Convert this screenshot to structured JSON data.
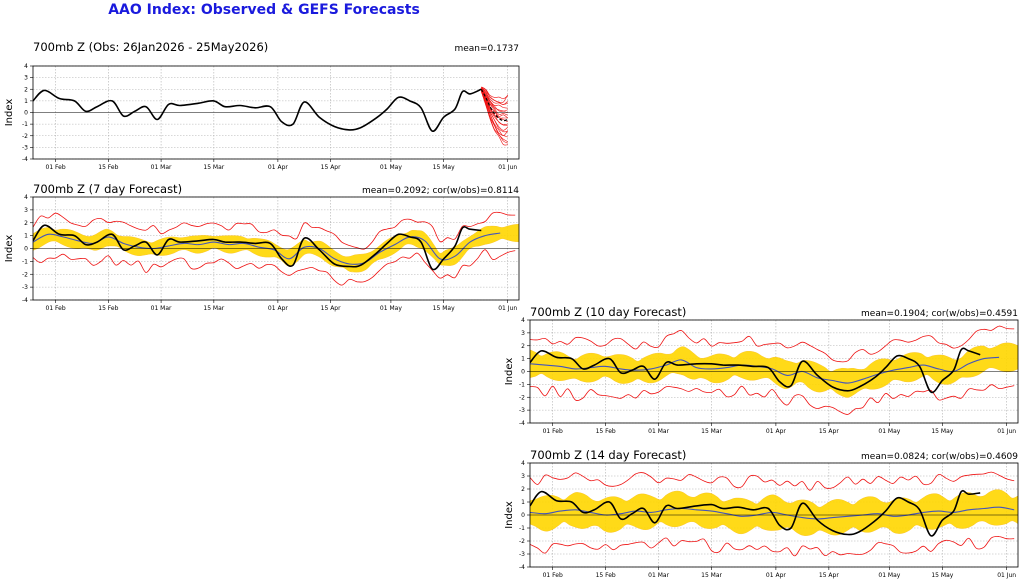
{
  "title": "AAO Index: Observed & GEFS Forecasts",
  "colors": {
    "observed": "#000000",
    "ensemble": "#ee1111",
    "spread": "#ffd700",
    "spread_edge": "#f7b500",
    "mean": "#4455bb",
    "title": "#1a1add"
  },
  "chart_data": [
    {
      "id": "obs",
      "type": "line",
      "title": "700mb Z (Obs: 26Jan2026 - 25May2026)",
      "stat": "mean=0.1737",
      "ylabel": "Index",
      "ylim": [
        -4,
        4
      ],
      "yticks": [
        -4,
        -3,
        -2,
        -1,
        0,
        1,
        2,
        3,
        4
      ],
      "xlim": [
        0,
        129
      ],
      "x_ticks": [
        {
          "x": 6,
          "label": "01 Feb"
        },
        {
          "x": 20,
          "label": "15 Feb"
        },
        {
          "x": 34,
          "label": "01 Mar"
        },
        {
          "x": 48,
          "label": "15 Mar"
        },
        {
          "x": 65,
          "label": "01 Apr"
        },
        {
          "x": 79,
          "label": "15 Apr"
        },
        {
          "x": 95,
          "label": "01 May"
        },
        {
          "x": 109,
          "label": "15 May"
        },
        {
          "x": 126,
          "label": "01 Jun"
        }
      ],
      "observed": {
        "x": [
          0,
          3,
          7,
          11,
          14,
          17,
          21,
          24,
          27,
          30,
          33,
          36,
          39,
          44,
          48,
          51,
          55,
          59,
          63,
          66,
          69,
          72,
          76,
          80,
          84,
          87,
          91,
          94,
          97,
          100,
          103,
          106,
          109,
          112,
          114,
          116,
          119
        ],
        "y": [
          1.0,
          1.9,
          1.2,
          1.0,
          0.1,
          0.5,
          1.0,
          -0.3,
          0.1,
          0.5,
          -0.6,
          0.7,
          0.6,
          0.8,
          1.0,
          0.5,
          0.6,
          0.4,
          0.5,
          -0.8,
          -1.0,
          0.9,
          -0.4,
          -1.2,
          -1.5,
          -1.3,
          -0.5,
          0.3,
          1.3,
          1.0,
          0.4,
          -1.6,
          -0.4,
          0.3,
          1.8,
          1.6,
          2.0
        ]
      },
      "forecast": {
        "start_x": 119,
        "end_x": 126,
        "start_y": 2.0,
        "mean": [
          2.0,
          1.3,
          0.5,
          -0.1,
          -0.5,
          -0.7,
          -0.6
        ],
        "spread": [
          0.2,
          0.7,
          1.0,
          1.4,
          1.7,
          1.9,
          2.1
        ],
        "members": 20
      }
    },
    {
      "id": "d7",
      "type": "line",
      "title": "700mb Z (7 day Forecast)",
      "stat": "mean=0.2092; cor(w/obs)=0.8114",
      "ylabel": "Index",
      "ylim": [
        -4,
        4
      ],
      "yticks": [
        -4,
        -3,
        -2,
        -1,
        0,
        1,
        2,
        3,
        4
      ],
      "xlim": [
        0,
        129
      ],
      "x_ticks": [
        {
          "x": 6,
          "label": "01 Feb"
        },
        {
          "x": 20,
          "label": "15 Feb"
        },
        {
          "x": 34,
          "label": "01 Mar"
        },
        {
          "x": 48,
          "label": "15 Mar"
        },
        {
          "x": 65,
          "label": "01 Apr"
        },
        {
          "x": 79,
          "label": "15 Apr"
        },
        {
          "x": 95,
          "label": "01 May"
        },
        {
          "x": 109,
          "label": "15 May"
        },
        {
          "x": 126,
          "label": "01 Jun"
        }
      ],
      "observed": {
        "x": [
          0,
          3,
          7,
          11,
          14,
          17,
          21,
          24,
          27,
          30,
          33,
          36,
          39,
          44,
          48,
          51,
          55,
          59,
          63,
          66,
          69,
          72,
          76,
          80,
          84,
          87,
          91,
          94,
          97,
          100,
          103,
          106,
          109,
          112,
          114,
          116,
          119
        ],
        "y": [
          0.6,
          1.8,
          1.1,
          1.0,
          0.3,
          0.5,
          1.1,
          -0.1,
          0.2,
          0.5,
          -0.5,
          0.7,
          0.5,
          0.6,
          0.7,
          0.5,
          0.5,
          0.4,
          0.4,
          -0.8,
          -1.3,
          0.8,
          -0.1,
          -1.2,
          -1.4,
          -1.3,
          -0.4,
          0.4,
          1.1,
          0.9,
          0.5,
          -1.6,
          -0.8,
          0.2,
          1.6,
          1.5,
          1.4
        ]
      },
      "mean": {
        "x": [
          0,
          4,
          8,
          12,
          16,
          20,
          24,
          28,
          32,
          36,
          40,
          44,
          48,
          52,
          56,
          60,
          64,
          68,
          72,
          76,
          80,
          84,
          88,
          92,
          96,
          100,
          104,
          108,
          112,
          116,
          120,
          124
        ],
        "y": [
          0.5,
          1.1,
          0.9,
          0.6,
          0.4,
          0.9,
          0.4,
          0.1,
          0.0,
          0.2,
          0.4,
          0.3,
          0.5,
          0.3,
          0.4,
          0.1,
          -0.1,
          -0.8,
          0.1,
          0.0,
          -0.8,
          -1.2,
          -1.1,
          -0.3,
          0.3,
          0.9,
          0.6,
          -0.8,
          -0.6,
          0.5,
          1.0,
          1.2
        ]
      },
      "spread": 0.55,
      "envelope": 1.5
    },
    {
      "id": "d10",
      "type": "line",
      "title": "700mb Z (10 day Forecast)",
      "stat": "mean=0.1904; cor(w/obs)=0.4591",
      "ylabel": "Index",
      "ylim": [
        -4,
        4
      ],
      "yticks": [
        -4,
        -3,
        -2,
        -1,
        0,
        1,
        2,
        3,
        4
      ],
      "xlim": [
        0,
        129
      ],
      "x_ticks": [
        {
          "x": 6,
          "label": "01 Feb"
        },
        {
          "x": 20,
          "label": "15 Feb"
        },
        {
          "x": 34,
          "label": "01 Mar"
        },
        {
          "x": 48,
          "label": "15 Mar"
        },
        {
          "x": 65,
          "label": "01 Apr"
        },
        {
          "x": 79,
          "label": "15 Apr"
        },
        {
          "x": 95,
          "label": "01 May"
        },
        {
          "x": 109,
          "label": "15 May"
        },
        {
          "x": 126,
          "label": "01 Jun"
        }
      ],
      "observed": {
        "x": [
          0,
          3,
          7,
          11,
          14,
          17,
          21,
          24,
          27,
          30,
          33,
          36,
          39,
          44,
          48,
          51,
          55,
          59,
          63,
          66,
          69,
          72,
          76,
          80,
          84,
          87,
          91,
          94,
          97,
          100,
          103,
          106,
          109,
          112,
          114,
          116,
          119
        ],
        "y": [
          0.7,
          1.6,
          1.1,
          1.0,
          0.2,
          0.5,
          1.0,
          -0.1,
          0.1,
          0.4,
          -0.6,
          0.7,
          0.5,
          0.6,
          0.6,
          0.5,
          0.5,
          0.4,
          0.3,
          -0.8,
          -1.1,
          0.8,
          -0.3,
          -1.2,
          -1.5,
          -1.2,
          -0.5,
          0.3,
          1.2,
          1.0,
          0.4,
          -1.6,
          -0.7,
          0.1,
          1.7,
          1.6,
          1.3
        ]
      },
      "mean": {
        "x": [
          0,
          4,
          8,
          12,
          16,
          20,
          24,
          28,
          32,
          36,
          40,
          44,
          48,
          52,
          56,
          60,
          64,
          68,
          72,
          76,
          80,
          84,
          88,
          92,
          96,
          100,
          104,
          108,
          112,
          116,
          120,
          124
        ],
        "y": [
          0.6,
          0.5,
          0.4,
          0.2,
          0.3,
          0.4,
          0.2,
          0.1,
          0.2,
          0.5,
          0.9,
          0.3,
          0.2,
          0.3,
          0.5,
          0.4,
          0.2,
          -0.3,
          0.0,
          -0.5,
          -0.7,
          -0.9,
          -0.6,
          -0.2,
          0.1,
          0.3,
          0.5,
          0.2,
          0.0,
          0.6,
          1.0,
          1.1
        ]
      },
      "spread": 0.9,
      "envelope": 2.0
    },
    {
      "id": "d14",
      "type": "line",
      "title": "700mb Z (14 day Forecast)",
      "stat": "mean=0.0824; cor(w/obs)=0.4609",
      "ylabel": "Index",
      "ylim": [
        -4,
        4
      ],
      "yticks": [
        -4,
        -3,
        -2,
        -1,
        0,
        1,
        2,
        3,
        4
      ],
      "xlim": [
        0,
        129
      ],
      "x_ticks": [
        {
          "x": 6,
          "label": "01 Feb"
        },
        {
          "x": 20,
          "label": "15 Feb"
        },
        {
          "x": 34,
          "label": "01 Mar"
        },
        {
          "x": 48,
          "label": "15 Mar"
        },
        {
          "x": 65,
          "label": "01 Apr"
        },
        {
          "x": 79,
          "label": "15 Apr"
        },
        {
          "x": 95,
          "label": "01 May"
        },
        {
          "x": 109,
          "label": "15 May"
        },
        {
          "x": 126,
          "label": "01 Jun"
        }
      ],
      "observed": {
        "x": [
          0,
          3,
          7,
          11,
          14,
          17,
          21,
          24,
          27,
          30,
          33,
          36,
          39,
          44,
          48,
          51,
          55,
          59,
          63,
          66,
          69,
          72,
          76,
          80,
          84,
          87,
          91,
          94,
          97,
          100,
          103,
          106,
          109,
          112,
          114,
          116,
          119
        ],
        "y": [
          0.7,
          1.8,
          1.1,
          1.0,
          0.2,
          0.4,
          1.0,
          -0.3,
          0.1,
          0.5,
          -0.6,
          0.7,
          0.5,
          0.7,
          0.8,
          0.5,
          0.6,
          0.4,
          0.5,
          -0.8,
          -1.0,
          0.9,
          -0.4,
          -1.2,
          -1.5,
          -1.3,
          -0.5,
          0.3,
          1.3,
          1.0,
          0.4,
          -1.6,
          -0.4,
          0.3,
          1.8,
          1.6,
          1.7
        ]
      },
      "mean": {
        "x": [
          0,
          4,
          8,
          12,
          16,
          20,
          24,
          28,
          32,
          36,
          40,
          44,
          48,
          52,
          56,
          60,
          64,
          68,
          72,
          76,
          80,
          84,
          88,
          92,
          96,
          100,
          104,
          108,
          112,
          116,
          120,
          124,
          128
        ],
        "y": [
          0.2,
          0.1,
          0.3,
          0.4,
          0.2,
          0.0,
          0.1,
          0.3,
          0.2,
          0.4,
          0.5,
          0.4,
          0.3,
          0.1,
          -0.1,
          0.0,
          0.2,
          0.0,
          -0.2,
          -0.3,
          -0.2,
          -0.1,
          0.0,
          0.1,
          -0.1,
          0.0,
          0.2,
          0.3,
          0.2,
          0.4,
          0.5,
          0.6,
          0.4
        ]
      },
      "spread": 1.1,
      "envelope": 2.6
    }
  ]
}
